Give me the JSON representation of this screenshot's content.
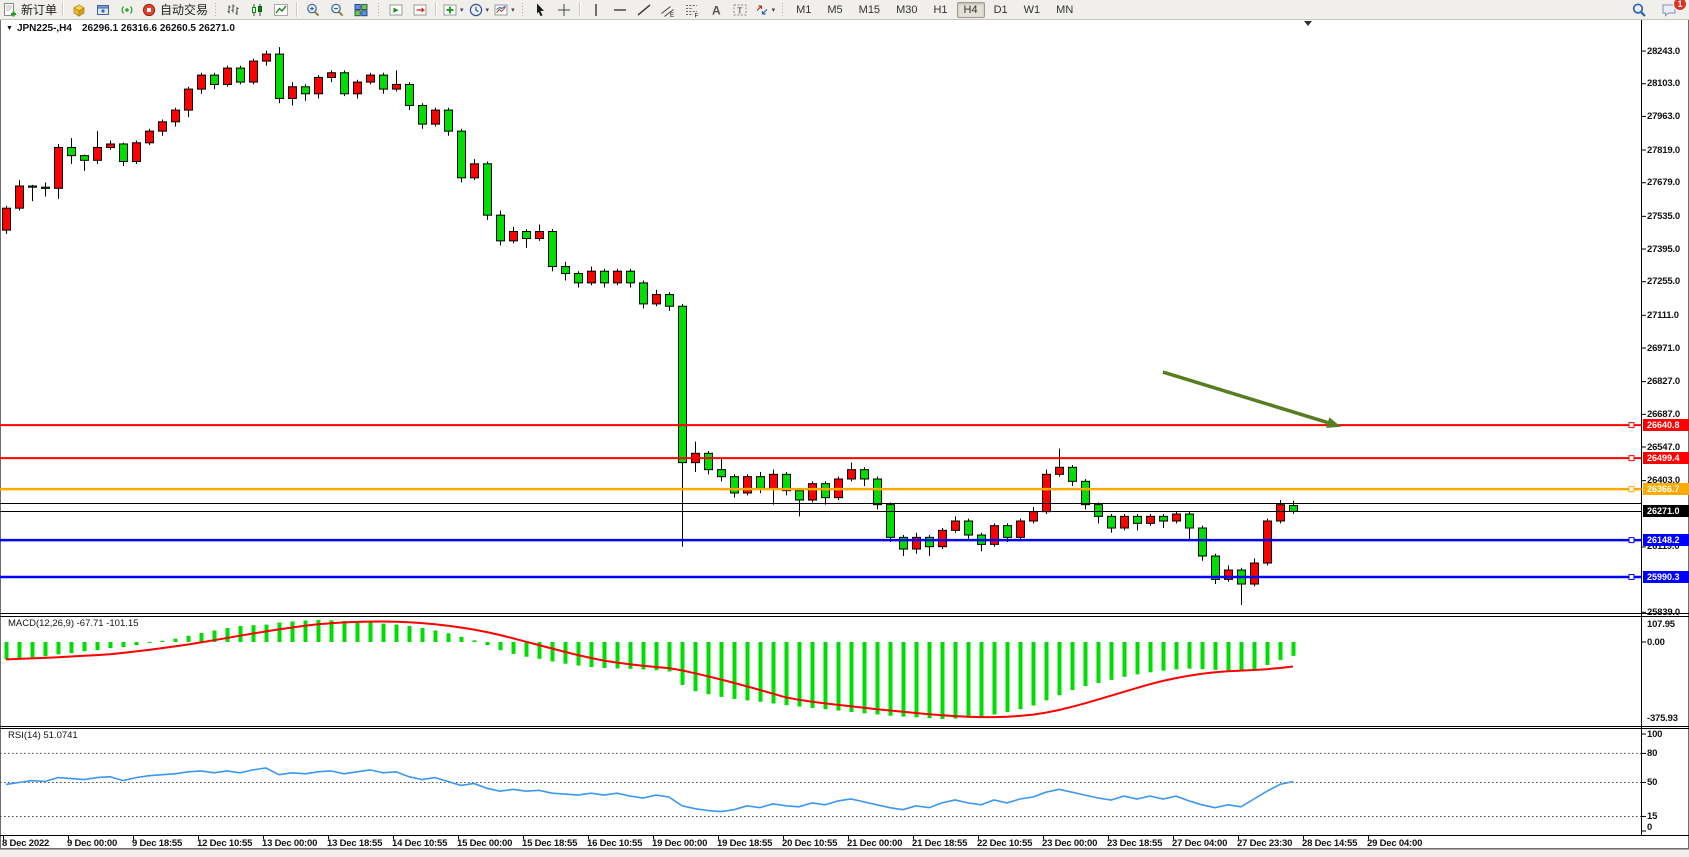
{
  "toolbar": {
    "new_order_label": "新订单",
    "autotrading_label": "自动交易",
    "notification_count": "1",
    "groups": [
      {
        "sep": "none",
        "items": [
          {
            "name": "new-order-button",
            "icon": "new-order-icon",
            "label": "新订单"
          }
        ]
      },
      {
        "sep": "line",
        "items": [
          {
            "name": "market-watch-button",
            "icon": "gold-cube-icon"
          },
          {
            "name": "profiles-button",
            "icon": "profile-window-icon"
          },
          {
            "name": "signals-button",
            "icon": "signals-icon"
          },
          {
            "name": "autotrading-button",
            "icon": "autotrading-icon",
            "label": "自动交易"
          }
        ]
      },
      {
        "sep": "grip",
        "items": [
          {
            "name": "bar-chart-button",
            "icon": "ohlc-bars-icon"
          },
          {
            "name": "candlestick-chart-button",
            "icon": "candlestick-icon"
          },
          {
            "name": "line-chart-button",
            "icon": "line-chart-icon"
          }
        ]
      },
      {
        "sep": "line",
        "items": [
          {
            "name": "zoom-in-button",
            "icon": "zoom-in-icon"
          },
          {
            "name": "zoom-out-button",
            "icon": "zoom-out-icon"
          },
          {
            "name": "tile-windows-button",
            "icon": "tile-windows-icon"
          }
        ]
      },
      {
        "sep": "grip",
        "items": [
          {
            "name": "auto-scroll-button",
            "icon": "auto-scroll-icon"
          },
          {
            "name": "chart-shift-button",
            "icon": "chart-shift-icon"
          }
        ]
      },
      {
        "sep": "line",
        "items": [
          {
            "name": "indicators-button",
            "icon": "indicators-icon",
            "dropdown": true
          },
          {
            "name": "periods-button",
            "icon": "clock-icon",
            "dropdown": true
          },
          {
            "name": "templates-button",
            "icon": "templates-icon",
            "dropdown": true
          }
        ]
      },
      {
        "sep": "grip",
        "items": [
          {
            "name": "cursor-button",
            "icon": "cursor-icon"
          },
          {
            "name": "crosshair-button",
            "icon": "crosshair-icon"
          }
        ]
      },
      {
        "sep": "line",
        "items": [
          {
            "name": "vertical-line-button",
            "icon": "vertical-line-icon"
          },
          {
            "name": "horizontal-line-button",
            "icon": "horizontal-line-icon"
          },
          {
            "name": "trendline-button",
            "icon": "trendline-icon"
          },
          {
            "name": "equidistant-channel-button",
            "icon": "equidistant-channel-icon"
          },
          {
            "name": "fibonacci-button",
            "icon": "fibonacci-icon"
          },
          {
            "name": "text-button",
            "icon": "text-a-icon"
          },
          {
            "name": "text-label-button",
            "icon": "text-label-icon"
          },
          {
            "name": "arrows-button",
            "icon": "arrows-icon",
            "dropdown": true
          }
        ]
      }
    ],
    "timeframes": [
      {
        "label": "M1",
        "active": false
      },
      {
        "label": "M5",
        "active": false
      },
      {
        "label": "M15",
        "active": false
      },
      {
        "label": "M30",
        "active": false
      },
      {
        "label": "H1",
        "active": false
      },
      {
        "label": "H4",
        "active": true
      },
      {
        "label": "D1",
        "active": false
      },
      {
        "label": "W1",
        "active": false
      },
      {
        "label": "MN",
        "active": false
      }
    ]
  },
  "chart": {
    "title_symbol": "JPN225-,H4",
    "title_ohlc": "26296.1 26316.6 26260.5 26271.0",
    "macd_label": "MACD(12,26,9) -67.71 -101.15",
    "rsi_label": "RSI(14) 51.0741",
    "price_axis_labels": [
      "28243.0",
      "28103.0",
      "27963.0",
      "27819.0",
      "27679.0",
      "27535.0",
      "27395.0",
      "27255.0",
      "27111.0",
      "26971.0",
      "26827.0",
      "26687.0",
      "26547.0",
      "26403.0",
      "26119.0",
      "25839.0"
    ],
    "macd_axis_labels": [
      "107.95",
      "0.00",
      "-375.93"
    ],
    "rsi_axis_labels": [
      "100",
      "80",
      "50",
      "15",
      "0"
    ],
    "objects": {
      "hlines": [
        {
          "price": 26640.8,
          "color": "#ff0000",
          "width": 2,
          "badge": "26640.8",
          "marker": true
        },
        {
          "price": 26499.4,
          "color": "#ff0000",
          "width": 2,
          "badge": "26499.4",
          "marker": true
        },
        {
          "price": 26366.7,
          "color": "#ffaa00",
          "width": 2.5,
          "badge": "26366.7",
          "marker": true
        },
        {
          "price": 26305.0,
          "color": "#000000",
          "width": 1,
          "badge": null,
          "marker": false
        },
        {
          "price": 26148.2,
          "color": "#0000ff",
          "width": 2.5,
          "badge": "26148.2",
          "marker": true
        },
        {
          "price": 25990.3,
          "color": "#0000ff",
          "width": 2.5,
          "badge": "25990.3",
          "marker": true
        }
      ],
      "price_marker": {
        "price": 26271.0,
        "badge": "26271.0",
        "color": "#000000"
      },
      "trend_arrow": {
        "from_bar": 89,
        "from_price": 26868,
        "to_bar": 102.7,
        "to_price": 26634,
        "color": "#567d1f"
      }
    }
  },
  "chart_data": [
    {
      "type": "candlestick",
      "title": "JPN225- H4",
      "up_color": "#ff0000",
      "down_color": "#00dd00",
      "ylim": [
        25836,
        28376
      ],
      "y_ticks": [
        28243.0,
        28103.0,
        27963.0,
        27819.0,
        27679.0,
        27535.0,
        27395.0,
        27255.0,
        27111.0,
        26971.0,
        26827.0,
        26687.0,
        26547.0,
        26403.0,
        26119.0,
        25839.0
      ],
      "x_tick_labels": [
        "8 Dec 2022",
        "9 Dec 00:00",
        "9 Dec 18:55",
        "12 Dec 10:55",
        "13 Dec 00:00",
        "13 Dec 18:55",
        "14 Dec 10:55",
        "15 Dec 00:00",
        "15 Dec 18:55",
        "16 Dec 10:55",
        "19 Dec 00:00",
        "19 Dec 18:55",
        "20 Dec 10:55",
        "21 Dec 00:00",
        "21 Dec 18:55",
        "22 Dec 10:55",
        "23 Dec 00:00",
        "23 Dec 18:55",
        "27 Dec 04:00",
        "27 Dec 23:30",
        "28 Dec 14:55",
        "29 Dec 04:00"
      ],
      "bars_per_label": 5,
      "candles_ohlc": [
        [
          27476,
          27580,
          27460,
          27570
        ],
        [
          27570,
          27690,
          27560,
          27665
        ],
        [
          27665,
          27670,
          27600,
          27660
        ],
        [
          27660,
          27680,
          27620,
          27655
        ],
        [
          27655,
          27845,
          27610,
          27830
        ],
        [
          27830,
          27870,
          27760,
          27795
        ],
        [
          27795,
          27800,
          27730,
          27775
        ],
        [
          27775,
          27900,
          27760,
          27830
        ],
        [
          27830,
          27860,
          27820,
          27845
        ],
        [
          27845,
          27850,
          27750,
          27770
        ],
        [
          27770,
          27860,
          27760,
          27850
        ],
        [
          27850,
          27910,
          27840,
          27900
        ],
        [
          27900,
          27950,
          27880,
          27940
        ],
        [
          27940,
          28000,
          27920,
          27990
        ],
        [
          27990,
          28090,
          27960,
          28080
        ],
        [
          28080,
          28150,
          28060,
          28140
        ],
        [
          28140,
          28150,
          28080,
          28100
        ],
        [
          28100,
          28180,
          28090,
          28170
        ],
        [
          28170,
          28180,
          28100,
          28110
        ],
        [
          28110,
          28210,
          28100,
          28200
        ],
        [
          28200,
          28245,
          28180,
          28230
        ],
        [
          28230,
          28260,
          28020,
          28040
        ],
        [
          28040,
          28110,
          28010,
          28090
        ],
        [
          28090,
          28100,
          28030,
          28060
        ],
        [
          28060,
          28140,
          28040,
          28130
        ],
        [
          28130,
          28160,
          28110,
          28150
        ],
        [
          28150,
          28160,
          28050,
          28060
        ],
        [
          28060,
          28120,
          28040,
          28110
        ],
        [
          28110,
          28150,
          28100,
          28140
        ],
        [
          28140,
          28150,
          28060,
          28080
        ],
        [
          28080,
          28160,
          28070,
          28100
        ],
        [
          28100,
          28110,
          27990,
          28010
        ],
        [
          28010,
          28020,
          27910,
          27930
        ],
        [
          27930,
          28000,
          27920,
          27990
        ],
        [
          27990,
          28000,
          27880,
          27900
        ],
        [
          27900,
          27910,
          27680,
          27700
        ],
        [
          27700,
          27780,
          27690,
          27760
        ],
        [
          27760,
          27770,
          27520,
          27540
        ],
        [
          27540,
          27560,
          27410,
          27430
        ],
        [
          27430,
          27490,
          27420,
          27470
        ],
        [
          27470,
          27480,
          27400,
          27440
        ],
        [
          27440,
          27500,
          27430,
          27470
        ],
        [
          27470,
          27480,
          27300,
          27320
        ],
        [
          27320,
          27340,
          27260,
          27290
        ],
        [
          27290,
          27300,
          27230,
          27250
        ],
        [
          27250,
          27320,
          27240,
          27300
        ],
        [
          27300,
          27310,
          27230,
          27250
        ],
        [
          27250,
          27310,
          27240,
          27300
        ],
        [
          27300,
          27310,
          27230,
          27250
        ],
        [
          27250,
          27260,
          27140,
          27160
        ],
        [
          27160,
          27220,
          27150,
          27200
        ],
        [
          27200,
          27210,
          27130,
          27150
        ],
        [
          27150,
          27160,
          26120,
          26480
        ],
        [
          26480,
          26570,
          26440,
          26520
        ],
        [
          26520,
          26530,
          26430,
          26450
        ],
        [
          26450,
          26500,
          26400,
          26420
        ],
        [
          26420,
          26430,
          26330,
          26350
        ],
        [
          26350,
          26430,
          26340,
          26420
        ],
        [
          26420,
          26440,
          26350,
          26370
        ],
        [
          26370,
          26450,
          26300,
          26430
        ],
        [
          26430,
          26440,
          26340,
          26360
        ],
        [
          26360,
          26370,
          26250,
          26320
        ],
        [
          26320,
          26400,
          26310,
          26390
        ],
        [
          26390,
          26400,
          26300,
          26330
        ],
        [
          26330,
          26420,
          26320,
          26410
        ],
        [
          26410,
          26480,
          26400,
          26450
        ],
        [
          26450,
          26460,
          26380,
          26410
        ],
        [
          26410,
          26420,
          26280,
          26300
        ],
        [
          26300,
          26310,
          26140,
          26160
        ],
        [
          26160,
          26170,
          26080,
          26110
        ],
        [
          26110,
          26180,
          26090,
          26160
        ],
        [
          26160,
          26170,
          26080,
          26120
        ],
        [
          26120,
          26200,
          26110,
          26190
        ],
        [
          26190,
          26250,
          26180,
          26230
        ],
        [
          26230,
          26240,
          26150,
          26170
        ],
        [
          26170,
          26180,
          26100,
          26130
        ],
        [
          26130,
          26220,
          26120,
          26210
        ],
        [
          26210,
          26220,
          26140,
          26160
        ],
        [
          26160,
          26240,
          26150,
          26230
        ],
        [
          26230,
          26290,
          26220,
          26270
        ],
        [
          26270,
          26450,
          26260,
          26430
        ],
        [
          26430,
          26540,
          26420,
          26460
        ],
        [
          26460,
          26470,
          26380,
          26400
        ],
        [
          26400,
          26410,
          26280,
          26300
        ],
        [
          26300,
          26310,
          26220,
          26250
        ],
        [
          26250,
          26260,
          26180,
          26200
        ],
        [
          26200,
          26260,
          26190,
          26250
        ],
        [
          26250,
          26260,
          26190,
          26220
        ],
        [
          26220,
          26260,
          26210,
          26250
        ],
        [
          26250,
          26260,
          26200,
          26230
        ],
        [
          26230,
          26270,
          26220,
          26260
        ],
        [
          26260,
          26270,
          26150,
          26200
        ],
        [
          26200,
          26210,
          26060,
          26080
        ],
        [
          26080,
          26090,
          25960,
          25980
        ],
        [
          25980,
          26040,
          25970,
          26020
        ],
        [
          26020,
          26030,
          25870,
          25960
        ],
        [
          25960,
          26070,
          25950,
          26050
        ],
        [
          26050,
          26240,
          26040,
          26230
        ],
        [
          26230,
          26320,
          26220,
          26300
        ],
        [
          26296.1,
          26316.6,
          26260.5,
          26271.0
        ]
      ]
    },
    {
      "type": "bar",
      "title": "MACD(12,26,9)",
      "histogram_color": "#00dd00",
      "signal_color": "#ff0000",
      "signal_rule": "SMA9 of histogram",
      "current_macd": -67.71,
      "current_signal": -101.15,
      "ylim": [
        -375.93,
        107.95
      ],
      "values": [
        -85,
        -80,
        -75,
        -70,
        -60,
        -55,
        -45,
        -40,
        -30,
        -25,
        -15,
        -5,
        6,
        16,
        30,
        44,
        56,
        68,
        78,
        82,
        85,
        95,
        100,
        105,
        108,
        106,
        103,
        99,
        95,
        90,
        85,
        78,
        68,
        56,
        42,
        25,
        8,
        -15,
        -40,
        -58,
        -72,
        -82,
        -95,
        -106,
        -115,
        -122,
        -127,
        -129,
        -131,
        -134,
        -138,
        -144,
        -210,
        -240,
        -255,
        -268,
        -278,
        -285,
        -292,
        -300,
        -308,
        -315,
        -322,
        -328,
        -335,
        -342,
        -348,
        -354,
        -360,
        -364,
        -368,
        -372,
        -376,
        -374,
        -370,
        -364,
        -354,
        -342,
        -328,
        -310,
        -285,
        -260,
        -235,
        -215,
        -200,
        -185,
        -170,
        -158,
        -148,
        -140,
        -134,
        -130,
        -132,
        -136,
        -138,
        -140,
        -132,
        -112,
        -88,
        -67.71
      ]
    },
    {
      "type": "line",
      "title": "RSI(14)",
      "line_color": "#3b97f2",
      "current_value": 51.0741,
      "levels": [
        80,
        50,
        15
      ],
      "ylim": [
        0,
        100
      ],
      "values": [
        48,
        50,
        52,
        51,
        55,
        54,
        53,
        55,
        56,
        52,
        55,
        57,
        58,
        59,
        61,
        62,
        60,
        62,
        60,
        63,
        65,
        58,
        60,
        59,
        61,
        62,
        59,
        61,
        63,
        60,
        61,
        56,
        53,
        55,
        51,
        47,
        49,
        44,
        41,
        43,
        41,
        42,
        39,
        38,
        37,
        39,
        37,
        39,
        36,
        34,
        37,
        35,
        26,
        23,
        21,
        20,
        22,
        26,
        24,
        28,
        26,
        25,
        29,
        27,
        31,
        33,
        30,
        27,
        24,
        22,
        26,
        24,
        29,
        32,
        29,
        27,
        32,
        29,
        33,
        35,
        40,
        43,
        40,
        37,
        34,
        32,
        36,
        33,
        36,
        33,
        36,
        31,
        27,
        24,
        27,
        25,
        33,
        41,
        48,
        51
      ]
    }
  ]
}
